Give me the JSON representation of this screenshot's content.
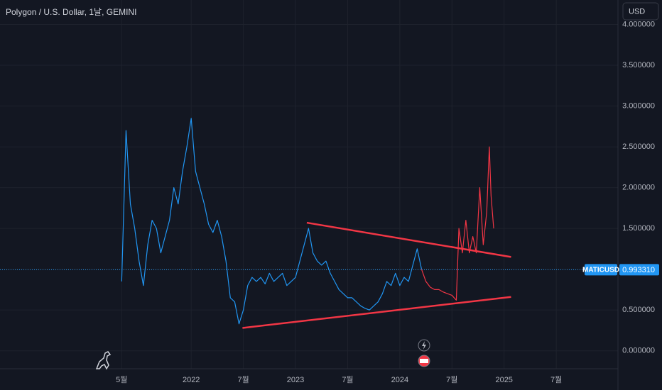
{
  "chart_data": {
    "type": "line",
    "title": "Polygon / U.S. Dollar, 1날, GEMINI",
    "currency": "USD",
    "xlim": [
      -14,
      57.1
    ],
    "ylim": [
      -0.22,
      4.3
    ],
    "xticks": [
      {
        "value": 0,
        "label": "5월"
      },
      {
        "value": 8,
        "label": "2022"
      },
      {
        "value": 14,
        "label": "7월"
      },
      {
        "value": 20,
        "label": "2023"
      },
      {
        "value": 26,
        "label": "7월"
      },
      {
        "value": 32,
        "label": "2024"
      },
      {
        "value": 38,
        "label": "7월"
      },
      {
        "value": 44,
        "label": "2025"
      },
      {
        "value": 50,
        "label": "7월"
      }
    ],
    "yticks": [
      {
        "value": 0,
        "label": "0.000000"
      },
      {
        "value": 0.5,
        "label": "0.500000"
      },
      {
        "value": 1,
        "label": "1.000000"
      },
      {
        "value": 1.5,
        "label": "1.500000"
      },
      {
        "value": 2,
        "label": "2.000000"
      },
      {
        "value": 2.5,
        "label": "2.500000"
      },
      {
        "value": 3,
        "label": "3.000000"
      },
      {
        "value": 3.5,
        "label": "3.500000"
      },
      {
        "value": 4,
        "label": "4.000000"
      }
    ],
    "grid": true,
    "series": [
      {
        "color": "#2196f3",
        "x": [
          0,
          0.5,
          1,
          1.5,
          2,
          2.5,
          3,
          3.5,
          4,
          4.5,
          5,
          5.5,
          6,
          6.5,
          7,
          7.5,
          8,
          8.5,
          9,
          9.5,
          10,
          10.5,
          11,
          11.5,
          12,
          12.5,
          13,
          13.5,
          14,
          14.5,
          15,
          15.5,
          16,
          16.5,
          17,
          17.5,
          18,
          18.5,
          19,
          19.5,
          20,
          20.5,
          21,
          21.5,
          22,
          22.5,
          23,
          23.5,
          24,
          24.5,
          25,
          25.5,
          26,
          26.5,
          27,
          27.5,
          28,
          28.5,
          29,
          29.5,
          30,
          30.5,
          31,
          31.5,
          32,
          32.5,
          33,
          33.5,
          34,
          34.5
        ],
        "values": [
          0.85,
          2.7,
          1.8,
          1.5,
          1.1,
          0.8,
          1.3,
          1.6,
          1.5,
          1.2,
          1.4,
          1.6,
          2.0,
          1.8,
          2.2,
          2.5,
          2.85,
          2.2,
          2.0,
          1.8,
          1.55,
          1.45,
          1.6,
          1.4,
          1.1,
          0.65,
          0.6,
          0.33,
          0.5,
          0.8,
          0.9,
          0.85,
          0.9,
          0.82,
          0.95,
          0.85,
          0.9,
          0.95,
          0.8,
          0.85,
          0.9,
          1.1,
          1.3,
          1.5,
          1.2,
          1.1,
          1.05,
          1.1,
          0.95,
          0.85,
          0.75,
          0.7,
          0.65,
          0.65,
          0.6,
          0.55,
          0.52,
          0.5,
          0.55,
          0.6,
          0.7,
          0.85,
          0.8,
          0.95,
          0.8,
          0.9,
          0.85,
          1.05,
          1.25,
          1.0
        ]
      },
      {
        "color": "#f23645",
        "x": [
          34.5,
          35,
          35.5,
          36,
          36.5,
          37,
          37.5,
          38,
          38.5,
          38.8,
          39.2,
          39.6,
          40,
          40.4,
          40.8,
          41.2,
          41.6,
          42,
          42.3,
          42.5,
          42.8
        ],
        "values": [
          1.0,
          0.85,
          0.78,
          0.75,
          0.75,
          0.72,
          0.7,
          0.68,
          0.62,
          1.5,
          1.2,
          1.6,
          1.2,
          1.4,
          1.2,
          2.0,
          1.3,
          1.7,
          2.5,
          1.9,
          1.5
        ]
      }
    ],
    "trendlines": [
      {
        "color": "#f23645",
        "x": [
          21.3,
          44.8
        ],
        "values": [
          1.57,
          1.15
        ]
      },
      {
        "color": "#f23645",
        "x": [
          13.9,
          44.8
        ],
        "values": [
          0.28,
          0.66
        ]
      }
    ],
    "price_line": {
      "name": "MATICUSD",
      "value": 0.99331,
      "label": "0.993310",
      "color": "#2196f3"
    }
  }
}
